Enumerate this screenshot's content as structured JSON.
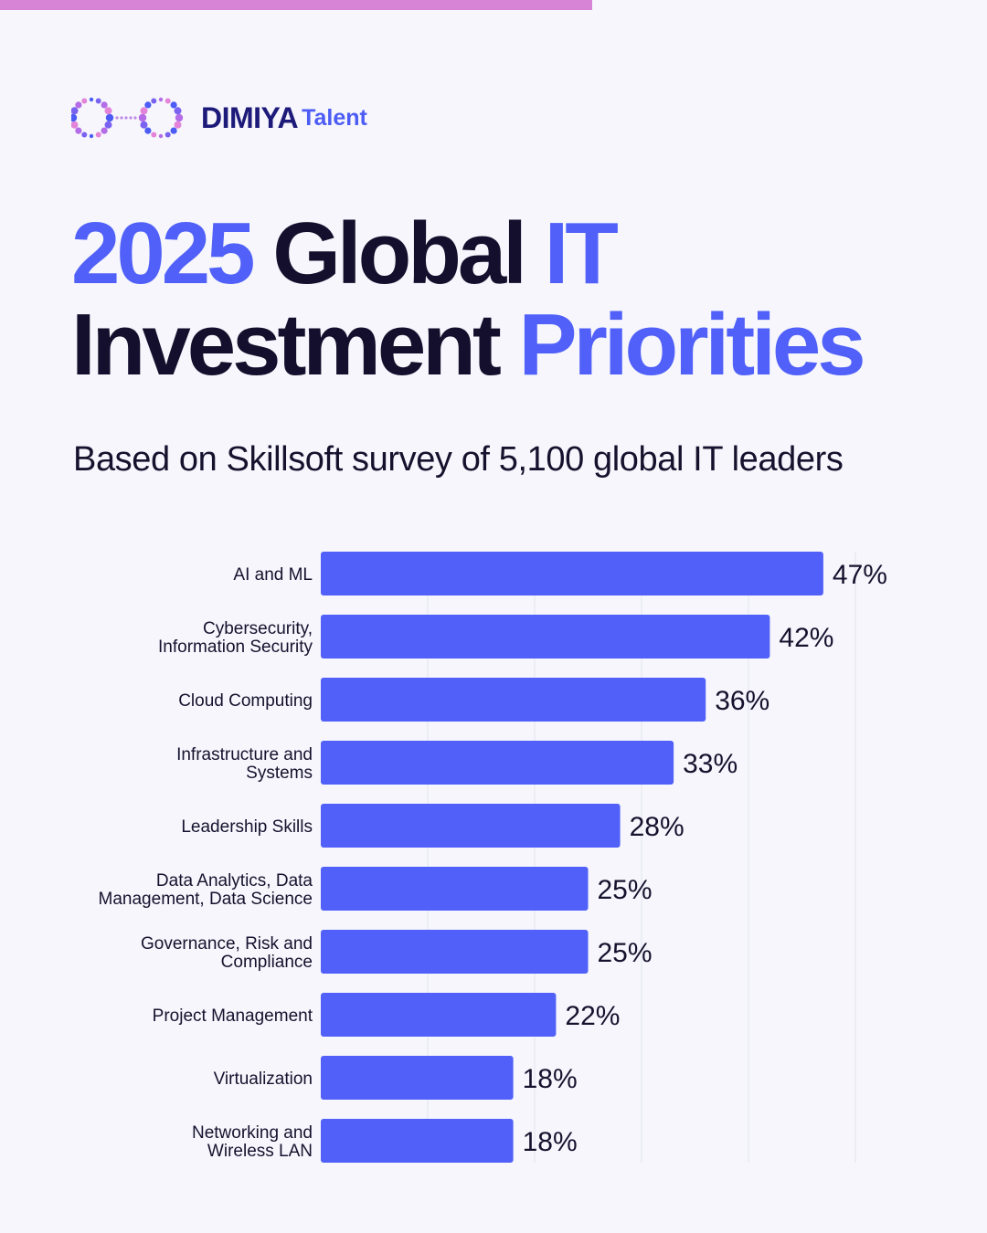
{
  "header": {
    "brand_name": "DIMIYA",
    "brand_sub": "Talent",
    "logo_icon": "infinity-dots-icon",
    "title_parts": [
      "2025",
      "Global",
      "IT",
      "Investment",
      "Priorities"
    ],
    "subtitle": "Based on Skillsoft survey of 5,100 global IT leaders"
  },
  "colors": {
    "accent": "#5060f8",
    "bar": "#5060f8",
    "title_dark": "#140f2c",
    "top_bar": "#d784d6",
    "background": "#f6f6fc"
  },
  "chart_data": {
    "type": "bar",
    "orientation": "horizontal",
    "categories": [
      [
        "AI and ML"
      ],
      [
        "Cybersecurity,",
        "Information Security"
      ],
      [
        "Cloud Computing"
      ],
      [
        "Infrastructure and",
        "Systems"
      ],
      [
        "Leadership Skills"
      ],
      [
        "Data Analytics, Data",
        "Management, Data Science"
      ],
      [
        "Governance, Risk and",
        "Compliance"
      ],
      [
        "Project Management"
      ],
      [
        "Virtualization"
      ],
      [
        "Networking and",
        "Wireless LAN"
      ]
    ],
    "values": [
      47,
      42,
      36,
      33,
      28,
      25,
      25,
      22,
      18,
      18
    ],
    "data_labels": [
      "47%",
      "42%",
      "36%",
      "33%",
      "28%",
      "25%",
      "25%",
      "22%",
      "18%",
      "18%"
    ],
    "xlim": [
      0,
      50
    ],
    "gridlines": [
      10,
      20,
      30,
      40,
      50
    ],
    "grid": true,
    "legend": false
  }
}
